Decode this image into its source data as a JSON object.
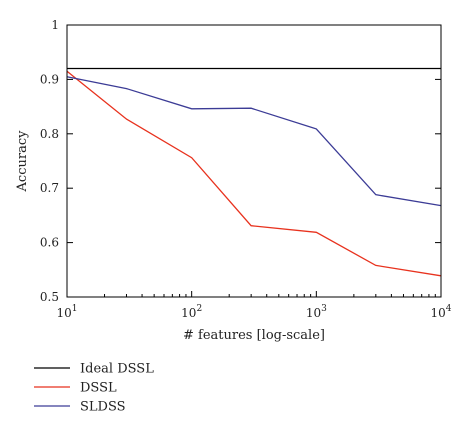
{
  "chart_data": {
    "type": "line",
    "xlabel": "# features [log-scale]",
    "ylabel": "Accuracy",
    "xscale": "log",
    "xlim": [
      10,
      10000
    ],
    "ylim": [
      0.5,
      1.0
    ],
    "grid": false,
    "legend_position": "bottom-left, below plot",
    "x_ticks": [
      {
        "value": 10,
        "base": "10",
        "exp": "1"
      },
      {
        "value": 100,
        "base": "10",
        "exp": "2"
      },
      {
        "value": 1000,
        "base": "10",
        "exp": "3"
      },
      {
        "value": 10000,
        "base": "10",
        "exp": "4"
      }
    ],
    "y_ticks": [
      {
        "value": 0.5,
        "label": "0.5"
      },
      {
        "value": 0.6,
        "label": "0.6"
      },
      {
        "value": 0.7,
        "label": "0.7"
      },
      {
        "value": 0.8,
        "label": "0.8"
      },
      {
        "value": 0.9,
        "label": "0.9"
      },
      {
        "value": 1.0,
        "label": "1"
      }
    ],
    "series": [
      {
        "name": "Ideal DSSL",
        "color": "#000000",
        "x": [
          10,
          10000
        ],
        "y": [
          0.92,
          0.92
        ]
      },
      {
        "name": "DSSL",
        "color": "#e8321e",
        "x": [
          10,
          30,
          100,
          300,
          1000,
          3000,
          10000
        ],
        "y": [
          0.915,
          0.827,
          0.756,
          0.631,
          0.619,
          0.558,
          0.539
        ]
      },
      {
        "name": "SLDSS",
        "color": "#3c3c96",
        "x": [
          10,
          30,
          100,
          300,
          1000,
          3000,
          10000
        ],
        "y": [
          0.905,
          0.883,
          0.846,
          0.847,
          0.809,
          0.688,
          0.668
        ]
      }
    ]
  }
}
